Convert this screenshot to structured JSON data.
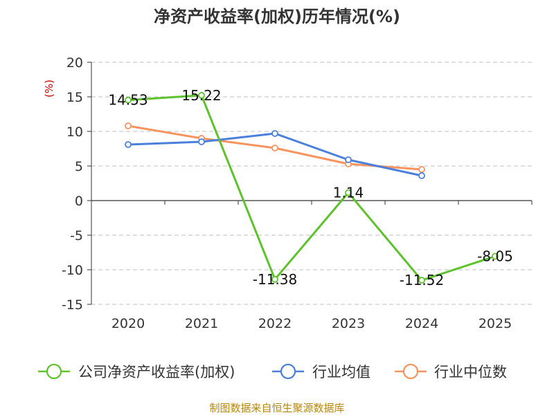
{
  "chart_data": {
    "type": "line",
    "title": "净资产收益率(加权)历年情况(%)",
    "unit_label": "(%)",
    "categories": [
      "2020",
      "2021",
      "2022",
      "2023",
      "2024",
      "2025"
    ],
    "ylim": [
      -15,
      20
    ],
    "yticks": [
      20,
      15,
      10,
      5,
      0,
      -5,
      -10,
      -15
    ],
    "ytick_labels": [
      "20",
      "15",
      "10",
      "5",
      "0",
      "-5",
      "-10",
      "-15"
    ],
    "grid": true,
    "legend_position": "bottom",
    "series": [
      {
        "name": "公司净资产收益率(加权)",
        "color": "#5ec22d",
        "values": [
          14.53,
          15.22,
          -11.38,
          1.14,
          -11.52,
          -8.05
        ],
        "labels": [
          "14.53",
          "15.22",
          "-11.38",
          "1.14",
          "-11.52",
          "-8.05"
        ]
      },
      {
        "name": "行业均值",
        "color": "#4a7fdb",
        "values": [
          8.1,
          8.5,
          9.7,
          5.9,
          3.6,
          null
        ]
      },
      {
        "name": "行业中位数",
        "color": "#f7935e",
        "values": [
          10.8,
          9.0,
          7.6,
          5.3,
          4.5,
          null
        ]
      }
    ],
    "source": "制图数据来自恒生聚源数据库"
  }
}
